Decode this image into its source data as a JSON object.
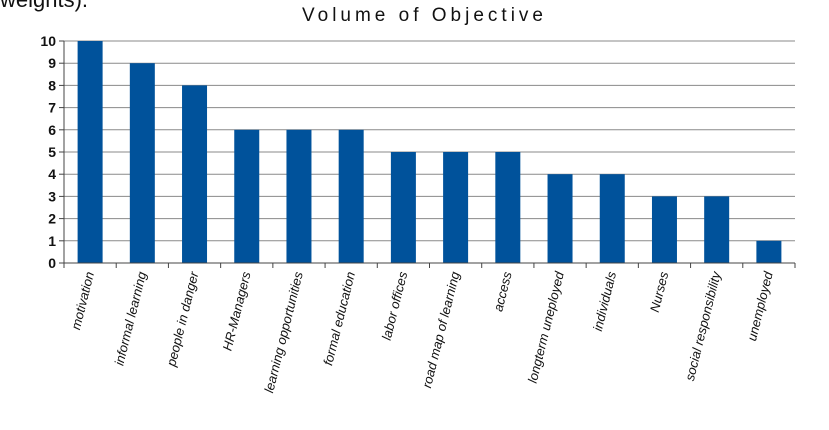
{
  "top_fragment": "weights).",
  "chart_data": {
    "type": "bar",
    "title": "Volume of Objective",
    "xlabel": "",
    "ylabel": "",
    "categories": [
      "motivation",
      "informal learning",
      "people in danger",
      "HR-Managers",
      "learning opportunities",
      "formal education",
      "labor offices",
      "road map of learning",
      "access",
      "longterm uneployed",
      "individuals",
      "Nurses",
      "social responsibility",
      "unemployed"
    ],
    "values": [
      10,
      9,
      8,
      6,
      6,
      6,
      5,
      5,
      5,
      4,
      4,
      3,
      3,
      1
    ],
    "ylim": [
      0,
      10
    ],
    "yticks": [
      "0",
      "1",
      "2",
      "3",
      "4",
      "5",
      "6",
      "7",
      "8",
      "9",
      "10"
    ],
    "grid": true,
    "bar_color": "#00529b"
  }
}
